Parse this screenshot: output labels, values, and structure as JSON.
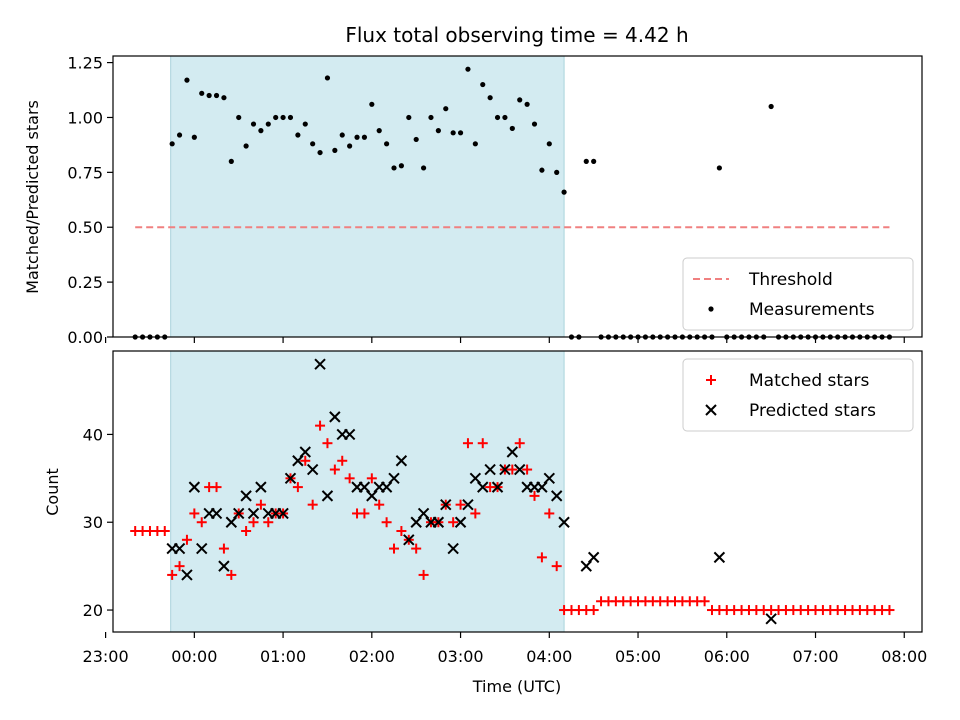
{
  "chart_data": [
    {
      "type": "scatter",
      "title": "Flux total observing time = 4.42 h",
      "xlabel": "",
      "ylabel": "Matched/Predicted stars",
      "x_unit": "time_utc",
      "xlim": [
        "23:05",
        "08:12"
      ],
      "ylim": [
        0,
        1.28
      ],
      "yticks": [
        0.0,
        0.25,
        0.5,
        0.75,
        1.0,
        1.25
      ],
      "ytick_labels": [
        "0.00",
        "0.25",
        "0.50",
        "0.75",
        "1.00",
        "1.25"
      ],
      "shaded_region": {
        "x_start": "23:44",
        "x_end": "04:10",
        "color": "#d3ebf1"
      },
      "legend_position": "bottom-right",
      "series": [
        {
          "name": "Threshold",
          "kind": "line",
          "style": "dashed",
          "color": "#f08080",
          "x": [
            "23:20",
            "07:50"
          ],
          "y": [
            0.5,
            0.5
          ]
        },
        {
          "name": "Measurements",
          "kind": "scatter",
          "marker": "dot",
          "color": "#000000",
          "x": [
            "23:20",
            "23:25",
            "23:30",
            "23:35",
            "23:40",
            "23:45",
            "23:50",
            "23:55",
            "00:00",
            "00:05",
            "00:10",
            "00:15",
            "00:20",
            "00:25",
            "00:30",
            "00:35",
            "00:40",
            "00:45",
            "00:50",
            "00:55",
            "01:00",
            "01:05",
            "01:10",
            "01:15",
            "01:20",
            "01:25",
            "01:30",
            "01:35",
            "01:40",
            "01:45",
            "01:50",
            "01:55",
            "02:00",
            "02:05",
            "02:10",
            "02:15",
            "02:20",
            "02:25",
            "02:30",
            "02:35",
            "02:40",
            "02:45",
            "02:50",
            "02:55",
            "03:00",
            "03:05",
            "03:10",
            "03:15",
            "03:20",
            "03:25",
            "03:30",
            "03:35",
            "03:40",
            "03:45",
            "03:50",
            "03:55",
            "04:00",
            "04:05",
            "04:10",
            "04:15",
            "04:20",
            "04:25",
            "04:30",
            "04:35",
            "04:40",
            "04:45",
            "04:50",
            "04:55",
            "05:00",
            "05:05",
            "05:10",
            "05:15",
            "05:20",
            "05:25",
            "05:30",
            "05:35",
            "05:40",
            "05:45",
            "05:50",
            "05:55",
            "06:00",
            "06:05",
            "06:10",
            "06:15",
            "06:20",
            "06:25",
            "06:30",
            "06:35",
            "06:40",
            "06:45",
            "06:50",
            "06:55",
            "07:00",
            "07:05",
            "07:10",
            "07:15",
            "07:20",
            "07:25",
            "07:30",
            "07:35",
            "07:40",
            "07:45",
            "07:50"
          ],
          "y": [
            0,
            0,
            0,
            0,
            0,
            0.88,
            0.92,
            1.17,
            0.91,
            1.11,
            1.1,
            1.1,
            1.09,
            0.8,
            1.0,
            0.87,
            0.97,
            0.94,
            0.97,
            1.0,
            1.0,
            1.0,
            0.92,
            0.97,
            0.88,
            0.84,
            1.18,
            0.85,
            0.92,
            0.87,
            0.91,
            0.91,
            1.06,
            0.94,
            0.88,
            0.77,
            0.78,
            1.0,
            0.9,
            0.77,
            1.0,
            0.94,
            1.04,
            0.93,
            0.93,
            1.22,
            0.88,
            1.15,
            1.09,
            1.0,
            1.0,
            0.95,
            1.08,
            1.06,
            0.97,
            0.76,
            0.88,
            0.75,
            0.66,
            0,
            0,
            0.8,
            0.8,
            0,
            0,
            0,
            0,
            0,
            0,
            0,
            0,
            0,
            0,
            0,
            0,
            0,
            0,
            0,
            0,
            0.77,
            0,
            0,
            0,
            0,
            0,
            0,
            1.05,
            0,
            0,
            0,
            0,
            0,
            0,
            0,
            0,
            0,
            0,
            0,
            0,
            0,
            0,
            0,
            0
          ]
        }
      ]
    },
    {
      "type": "scatter",
      "title": "",
      "xlabel": "Time (UTC)",
      "ylabel": "Count",
      "x_unit": "time_utc",
      "xlim": [
        "23:05",
        "08:12"
      ],
      "ylim": [
        17.5,
        49.5
      ],
      "yticks": [
        20,
        30,
        40
      ],
      "ytick_labels": [
        "20",
        "30",
        "40"
      ],
      "xticks": [
        "23:00",
        "00:00",
        "01:00",
        "02:00",
        "03:00",
        "04:00",
        "05:00",
        "06:00",
        "07:00",
        "08:00"
      ],
      "shaded_region": {
        "x_start": "23:44",
        "x_end": "04:10",
        "color": "#d3ebf1"
      },
      "legend_position": "top-right",
      "series": [
        {
          "name": "Matched stars",
          "kind": "scatter",
          "marker": "plus",
          "color": "#ff0000",
          "x": [
            "23:20",
            "23:25",
            "23:30",
            "23:35",
            "23:40",
            "23:45",
            "23:50",
            "23:55",
            "00:00",
            "00:05",
            "00:10",
            "00:15",
            "00:20",
            "00:25",
            "00:30",
            "00:35",
            "00:40",
            "00:45",
            "00:50",
            "00:55",
            "01:00",
            "01:05",
            "01:10",
            "01:15",
            "01:20",
            "01:25",
            "01:30",
            "01:35",
            "01:40",
            "01:45",
            "01:50",
            "01:55",
            "02:00",
            "02:05",
            "02:10",
            "02:15",
            "02:20",
            "02:25",
            "02:30",
            "02:35",
            "02:40",
            "02:45",
            "02:50",
            "02:55",
            "03:00",
            "03:05",
            "03:10",
            "03:15",
            "03:20",
            "03:25",
            "03:30",
            "03:35",
            "03:40",
            "03:45",
            "03:50",
            "03:55",
            "04:00",
            "04:05",
            "04:10",
            "04:15",
            "04:20",
            "04:25",
            "04:30",
            "04:35",
            "04:40",
            "04:45",
            "04:50",
            "04:55",
            "05:00",
            "05:05",
            "05:10",
            "05:15",
            "05:20",
            "05:25",
            "05:30",
            "05:35",
            "05:40",
            "05:45",
            "05:50",
            "05:55",
            "06:00",
            "06:05",
            "06:10",
            "06:15",
            "06:20",
            "06:25",
            "06:30",
            "06:35",
            "06:40",
            "06:45",
            "06:50",
            "06:55",
            "07:00",
            "07:05",
            "07:10",
            "07:15",
            "07:20",
            "07:25",
            "07:30",
            "07:35",
            "07:40",
            "07:45",
            "07:50"
          ],
          "y": [
            29,
            29,
            29,
            29,
            29,
            24,
            25,
            28,
            31,
            30,
            34,
            34,
            27,
            24,
            31,
            29,
            30,
            32,
            30,
            31,
            31,
            35,
            34,
            37,
            32,
            41,
            39,
            36,
            37,
            35,
            31,
            31,
            35,
            32,
            30,
            27,
            29,
            28,
            27,
            24,
            30,
            30,
            32,
            30,
            32,
            39,
            31,
            39,
            34,
            34,
            36,
            36,
            39,
            36,
            33,
            26,
            31,
            25,
            20,
            20,
            20,
            20,
            20,
            21,
            21,
            21,
            21,
            21,
            21,
            21,
            21,
            21,
            21,
            21,
            21,
            21,
            21,
            21,
            20,
            20,
            20,
            20,
            20,
            20,
            20,
            20,
            20,
            20,
            20,
            20,
            20,
            20,
            20,
            20,
            20,
            20,
            20,
            20,
            20,
            20,
            20,
            20,
            20
          ]
        },
        {
          "name": "Predicted stars",
          "kind": "scatter",
          "marker": "x",
          "color": "#000000",
          "x": [
            "23:45",
            "23:50",
            "23:55",
            "00:00",
            "00:05",
            "00:10",
            "00:15",
            "00:20",
            "00:25",
            "00:30",
            "00:35",
            "00:40",
            "00:45",
            "00:50",
            "00:55",
            "01:00",
            "01:05",
            "01:10",
            "01:15",
            "01:20",
            "01:25",
            "01:30",
            "01:35",
            "01:40",
            "01:45",
            "01:50",
            "01:55",
            "02:00",
            "02:05",
            "02:10",
            "02:15",
            "02:20",
            "02:25",
            "02:30",
            "02:35",
            "02:40",
            "02:45",
            "02:50",
            "02:55",
            "03:00",
            "03:05",
            "03:10",
            "03:15",
            "03:20",
            "03:25",
            "03:30",
            "03:35",
            "03:40",
            "03:45",
            "03:50",
            "03:55",
            "04:00",
            "04:05",
            "04:10",
            "04:25",
            "04:30",
            "05:55",
            "06:30"
          ],
          "y": [
            27,
            27,
            24,
            34,
            27,
            31,
            31,
            25,
            30,
            31,
            33,
            31,
            34,
            31,
            31,
            31,
            35,
            37,
            38,
            36,
            48,
            33,
            42,
            40,
            40,
            34,
            34,
            33,
            34,
            34,
            35,
            37,
            28,
            30,
            31,
            30,
            30,
            32,
            27,
            30,
            32,
            35,
            34,
            36,
            34,
            36,
            38,
            36,
            34,
            34,
            34,
            35,
            33,
            30,
            25,
            26,
            26,
            19
          ]
        }
      ]
    }
  ]
}
